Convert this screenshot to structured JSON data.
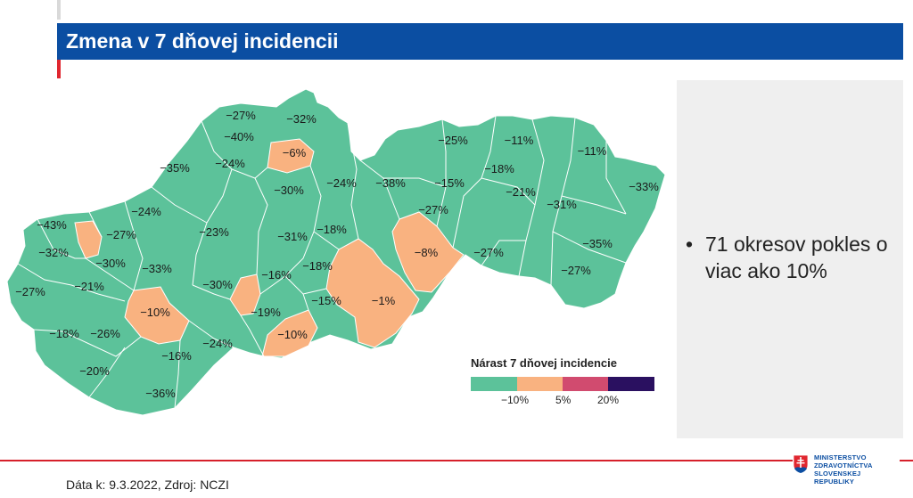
{
  "header": {
    "title": "Zmena v 7 dňovej incidencii"
  },
  "map": {
    "colors": {
      "decrease": "#5cc29a",
      "mild": "#f9b280",
      "strong": "#d14b6f",
      "severe": "#2a1060",
      "border": "#ffffff"
    },
    "labels": [
      {
        "text": "−27%",
        "cls": "decrease"
      },
      {
        "text": "−32%",
        "cls": "decrease"
      },
      {
        "text": "−40%",
        "cls": "decrease"
      },
      {
        "text": "−6%",
        "cls": "mild"
      },
      {
        "text": "−24%",
        "cls": "decrease"
      },
      {
        "text": "−35%",
        "cls": "decrease"
      },
      {
        "text": "−30%",
        "cls": "decrease"
      },
      {
        "text": "−24%",
        "cls": "decrease"
      },
      {
        "text": "−38%",
        "cls": "decrease"
      },
      {
        "text": "−15%",
        "cls": "decrease"
      },
      {
        "text": "−25%",
        "cls": "decrease"
      },
      {
        "text": "−11%",
        "cls": "decrease"
      },
      {
        "text": "−11%",
        "cls": "decrease"
      },
      {
        "text": "−18%",
        "cls": "decrease"
      },
      {
        "text": "−21%",
        "cls": "decrease"
      },
      {
        "text": "−33%",
        "cls": "decrease"
      },
      {
        "text": "−31%",
        "cls": "decrease"
      },
      {
        "text": "−24%",
        "cls": "decrease"
      },
      {
        "text": "−27%",
        "cls": "decrease"
      },
      {
        "text": "−43%",
        "cls": "decrease"
      },
      {
        "text": "−27%",
        "cls": "decrease"
      },
      {
        "text": "−23%",
        "cls": "decrease"
      },
      {
        "text": "−31%",
        "cls": "decrease"
      },
      {
        "text": "−18%",
        "cls": "decrease"
      },
      {
        "text": "−8%",
        "cls": "mild"
      },
      {
        "text": "−27%",
        "cls": "decrease"
      },
      {
        "text": "−35%",
        "cls": "decrease"
      },
      {
        "text": "−32%",
        "cls": "decrease"
      },
      {
        "text": "−30%",
        "cls": "decrease"
      },
      {
        "text": "−33%",
        "cls": "decrease"
      },
      {
        "text": "−18%",
        "cls": "decrease"
      },
      {
        "text": "−16%",
        "cls": "decrease"
      },
      {
        "text": "−27%",
        "cls": "decrease"
      },
      {
        "text": "−27%",
        "cls": "decrease"
      },
      {
        "text": "−21%",
        "cls": "decrease"
      },
      {
        "text": "−30%",
        "cls": "decrease"
      },
      {
        "text": "−1%",
        "cls": "mild"
      },
      {
        "text": "−15%",
        "cls": "decrease"
      },
      {
        "text": "−10%",
        "cls": "mild"
      },
      {
        "text": "−19%",
        "cls": "decrease"
      },
      {
        "text": "−18%",
        "cls": "decrease"
      },
      {
        "text": "−26%",
        "cls": "decrease"
      },
      {
        "text": "−10%",
        "cls": "mild"
      },
      {
        "text": "−24%",
        "cls": "decrease"
      },
      {
        "text": "−16%",
        "cls": "decrease"
      },
      {
        "text": "−20%",
        "cls": "decrease"
      },
      {
        "text": "−36%",
        "cls": "decrease"
      }
    ]
  },
  "legend": {
    "title": "Nárast 7 dňovej incidencie",
    "segments": [
      {
        "color": "#5cc29a"
      },
      {
        "color": "#f9b280"
      },
      {
        "color": "#d14b6f"
      },
      {
        "color": "#2a1060"
      }
    ],
    "ticks": [
      "−10%",
      "5%",
      "20%"
    ]
  },
  "side_panel": {
    "bullet": "71 okresov pokles o viac ako 10%"
  },
  "footer": {
    "source": "Dáta k: 9.3.2022, Zdroj: NCZI"
  },
  "logo": {
    "line1": "MINISTERSTVO",
    "line2": "ZDRAVOTNÍCTVA",
    "line3": "SLOVENSKEJ REPUBLIKY"
  }
}
